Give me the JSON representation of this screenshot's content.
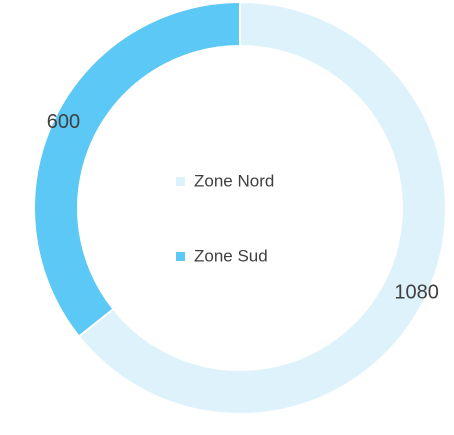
{
  "chart_data": {
    "type": "donut",
    "categories": [
      "Zone Nord",
      "Zone Sud"
    ],
    "values": [
      1080,
      600
    ],
    "colors": [
      "#ddf2fb",
      "#5bc8f5"
    ],
    "legend": "center"
  }
}
